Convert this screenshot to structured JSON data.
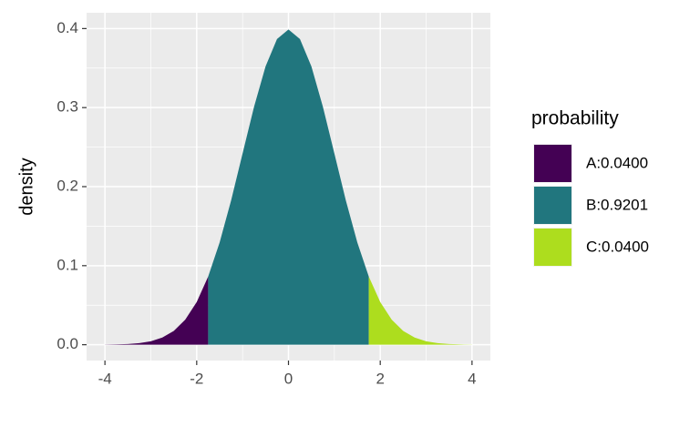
{
  "chart_data": {
    "type": "area",
    "ylabel": "density",
    "legend_title": "probability",
    "legend": "right",
    "grid": true,
    "xlim": [
      -4.4,
      4.4
    ],
    "ylim": [
      -0.02,
      0.42
    ],
    "xticks": [
      -4,
      -2,
      0,
      2,
      4
    ],
    "yticks": [
      {
        "value": 0,
        "label": "0.0"
      },
      0.1,
      0.2,
      0.3,
      0.4
    ],
    "xminor": [
      -3,
      -1,
      1,
      3
    ],
    "yminor": [
      0.05,
      0.15,
      0.25,
      0.35
    ],
    "series": [
      {
        "name": "A:0.0400",
        "color": "#440154",
        "x": [
          -4,
          -3.75,
          -3.5,
          -3.25,
          -3,
          -2.75,
          -2.5,
          -2.25,
          -2,
          -1.75
        ],
        "values": [
          0.0001,
          0.0004,
          0.0009,
          0.002,
          0.0044,
          0.0091,
          0.0175,
          0.0317,
          0.054,
          0.0863
        ]
      },
      {
        "name": "B:0.9201",
        "color": "#21767e",
        "x": [
          -1.75,
          -1.5,
          -1.25,
          -1,
          -0.75,
          -0.5,
          -0.25,
          0,
          0.25,
          0.5,
          0.75,
          1,
          1.25,
          1.5,
          1.75
        ],
        "values": [
          0.0863,
          0.1295,
          0.1826,
          0.242,
          0.3011,
          0.3521,
          0.3867,
          0.3989,
          0.3867,
          0.3521,
          0.3011,
          0.242,
          0.1826,
          0.1295,
          0.0863
        ]
      },
      {
        "name": "C:0.0400",
        "color": "#addd1e",
        "x": [
          1.75,
          2,
          2.25,
          2.5,
          2.75,
          3,
          3.25,
          3.5,
          3.75,
          4
        ],
        "values": [
          0.0863,
          0.054,
          0.0317,
          0.0175,
          0.0091,
          0.0044,
          0.002,
          0.0009,
          0.0004,
          0.0001
        ]
      }
    ]
  }
}
